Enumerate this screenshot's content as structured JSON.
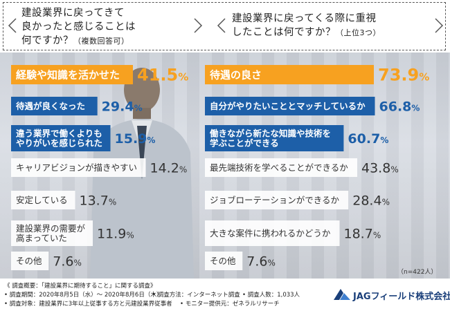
{
  "questions": {
    "left_lines": [
      "建設業界に戻ってきて",
      "良かったと感じることは",
      "何ですか？"
    ],
    "left_note": "（複数回答可）",
    "right_lines": [
      "建設業界に戻ってくる際に重視",
      "したことは何ですか？"
    ],
    "right_note": "（上位3つ）"
  },
  "colors": {
    "highlight": "#f7a120",
    "accent": "#1d5fa8",
    "other": "#ffffff",
    "logo": "#1a3f7a"
  },
  "chart_data": [
    {
      "type": "bar",
      "orientation": "horizontal",
      "categories": [
        "経験や知識を活かせた",
        "待遇が良くなった",
        "違う業界で働くよりもやりがいを感じられた",
        "キャリアビジョンが描きやすい",
        "安定している",
        "建設業界の需要が高まっていた",
        "その他"
      ],
      "label_lines": [
        [
          "経験や知識を活かせた"
        ],
        [
          "待遇が良くなった"
        ],
        [
          "違う業界で働くよりも",
          "やりがいを感じられた"
        ],
        [
          "キャリアビジョンが描きやすい"
        ],
        [
          "安定している"
        ],
        [
          "建設業界の需要が",
          "高まっていた"
        ],
        [
          "その他"
        ]
      ],
      "values": [
        41.5,
        29.4,
        15.9,
        14.2,
        13.7,
        11.9,
        7.6
      ],
      "value_labels": [
        [
          "41.",
          "5",
          "%"
        ],
        [
          "29.",
          "4",
          "%"
        ],
        [
          "15.",
          "9",
          "%"
        ],
        [
          "14.",
          "2",
          "%"
        ],
        [
          "13.",
          "7",
          "%"
        ],
        [
          "11.",
          "9",
          "%"
        ],
        [
          "7.",
          "6",
          "%"
        ]
      ],
      "styles": [
        "orange",
        "blue",
        "blue",
        "gray",
        "gray",
        "gray",
        "gray"
      ],
      "unit": "%"
    },
    {
      "type": "bar",
      "orientation": "horizontal",
      "categories": [
        "待遇の良さ",
        "自分がやりたいこととマッチしているか",
        "働きながら新たな知識や技術を学ぶことができる",
        "最先端技術を学べることができるか",
        "ジョブローテーションができるか",
        "大きな案件に携われるかどうか",
        "その他"
      ],
      "label_lines": [
        [
          "待遇の良さ"
        ],
        [
          "自分がやりたいこととマッチしているか"
        ],
        [
          "働きながら新たな知識や技術を",
          "学ぶことができる"
        ],
        [
          "最先端技術を学べることができるか"
        ],
        [
          "ジョブローテーションができるか"
        ],
        [
          "大きな案件に携われるかどうか"
        ],
        [
          "その他"
        ]
      ],
      "values": [
        73.9,
        66.8,
        60.7,
        43.8,
        28.4,
        18.7,
        7.6
      ],
      "value_labels": [
        [
          "73.",
          "9",
          "%"
        ],
        [
          "66.",
          "8",
          "%"
        ],
        [
          "60.",
          "7",
          "%"
        ],
        [
          "43.",
          "8",
          "%"
        ],
        [
          "28.",
          "4",
          "%"
        ],
        [
          "18.",
          "7",
          "%"
        ],
        [
          "7.",
          "6",
          "%"
        ]
      ],
      "styles": [
        "orange",
        "blue",
        "blue",
        "gray",
        "gray",
        "gray",
        "gray"
      ],
      "unit": "%"
    }
  ],
  "sample_note": "（n=422人）",
  "footer": {
    "title": "《 調査概要：「建設業界に期待すること」に関する調査》",
    "period": "• 調査期間：2020年8月5日（水）～ 2020年8月6日（木）",
    "method": "• 調査方法：インターネット調査",
    "count": "• 調査人数：1,033人",
    "target": "• 調査対象：建設業界に3年以上従事する方と元建設業界従事者",
    "provider": "• モニター提供元：ゼネラルリサーチ"
  },
  "logo": {
    "text": "JAGフィールド株式会社"
  }
}
